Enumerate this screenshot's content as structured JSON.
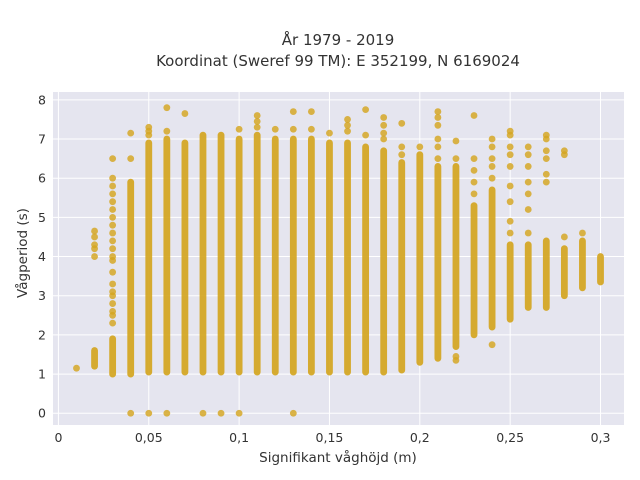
{
  "chart_data": {
    "type": "scatter",
    "title": "År 1979 - 2019",
    "subtitle": "Koordinat (Sweref 99 TM): E 352199, N 6169024",
    "xlabel": "Signifikant våghöjd (m)",
    "ylabel": "Vågperiod (s)",
    "xlim": [
      -0.003,
      0.313
    ],
    "ylim": [
      -0.3,
      8.2
    ],
    "x_ticks": [
      0,
      0.05,
      0.1,
      0.15,
      0.2,
      0.25,
      0.3
    ],
    "x_tick_labels": [
      "0",
      "0,05",
      "0,1",
      "0,15",
      "0,2",
      "0,25",
      "0,3"
    ],
    "y_ticks": [
      0,
      1,
      2,
      3,
      4,
      5,
      6,
      7,
      8
    ],
    "y_tick_labels": [
      "0",
      "1",
      "2",
      "3",
      "4",
      "5",
      "6",
      "7",
      "8"
    ],
    "grid": true,
    "legend": "none",
    "color": "#d4a520",
    "background": "#e5e5ef",
    "columns": [
      {
        "x": 0.01,
        "y_min": 1.15,
        "y_max": 1.15,
        "outliers": []
      },
      {
        "x": 0.02,
        "y_min": 1.2,
        "y_max": 1.6,
        "outliers": [
          4.0,
          4.2,
          4.3,
          4.5,
          4.65
        ]
      },
      {
        "x": 0.03,
        "y_min": 1.0,
        "y_max": 1.9,
        "outliers": [
          2.3,
          2.5,
          2.6,
          2.8,
          3.0,
          3.1,
          3.3,
          3.6,
          3.9,
          4.0,
          4.2,
          4.4,
          4.6,
          4.8,
          5.0,
          5.2,
          5.4,
          5.6,
          5.8,
          6.0,
          6.5
        ]
      },
      {
        "x": 0.04,
        "y_min": 1.0,
        "y_max": 5.9,
        "outliers": [
          0.0,
          6.5,
          7.15
        ]
      },
      {
        "x": 0.05,
        "y_min": 1.05,
        "y_max": 6.9,
        "outliers": [
          0.0,
          7.1,
          7.2,
          7.3
        ]
      },
      {
        "x": 0.06,
        "y_min": 1.05,
        "y_max": 7.0,
        "outliers": [
          0.0,
          7.2,
          7.8
        ]
      },
      {
        "x": 0.07,
        "y_min": 1.05,
        "y_max": 6.9,
        "outliers": [
          7.65
        ]
      },
      {
        "x": 0.08,
        "y_min": 1.05,
        "y_max": 7.1,
        "outliers": [
          0.0
        ]
      },
      {
        "x": 0.09,
        "y_min": 1.05,
        "y_max": 7.1,
        "outliers": [
          0.0
        ]
      },
      {
        "x": 0.1,
        "y_min": 1.05,
        "y_max": 7.0,
        "outliers": [
          0.0,
          7.25
        ]
      },
      {
        "x": 0.11,
        "y_min": 1.05,
        "y_max": 7.1,
        "outliers": [
          7.3,
          7.45,
          7.6
        ]
      },
      {
        "x": 0.12,
        "y_min": 1.05,
        "y_max": 7.0,
        "outliers": [
          7.25
        ]
      },
      {
        "x": 0.13,
        "y_min": 1.05,
        "y_max": 7.0,
        "outliers": [
          0.0,
          7.25,
          7.7
        ]
      },
      {
        "x": 0.14,
        "y_min": 1.05,
        "y_max": 7.0,
        "outliers": [
          7.25,
          7.7
        ]
      },
      {
        "x": 0.15,
        "y_min": 1.05,
        "y_max": 6.9,
        "outliers": [
          7.15
        ]
      },
      {
        "x": 0.16,
        "y_min": 1.05,
        "y_max": 6.9,
        "outliers": [
          7.2,
          7.35,
          7.5
        ]
      },
      {
        "x": 0.17,
        "y_min": 1.05,
        "y_max": 6.8,
        "outliers": [
          7.1,
          7.75
        ]
      },
      {
        "x": 0.18,
        "y_min": 1.05,
        "y_max": 6.7,
        "outliers": [
          7.0,
          7.15,
          7.35,
          7.55
        ]
      },
      {
        "x": 0.19,
        "y_min": 1.1,
        "y_max": 6.4,
        "outliers": [
          6.6,
          6.8,
          7.4
        ]
      },
      {
        "x": 0.2,
        "y_min": 1.3,
        "y_max": 6.6,
        "outliers": [
          6.8
        ]
      },
      {
        "x": 0.21,
        "y_min": 1.4,
        "y_max": 6.3,
        "outliers": [
          6.5,
          6.8,
          7.0,
          7.35,
          7.55,
          7.7
        ]
      },
      {
        "x": 0.22,
        "y_min": 1.7,
        "y_max": 6.3,
        "outliers": [
          1.35,
          1.45,
          6.5,
          6.95
        ]
      },
      {
        "x": 0.23,
        "y_min": 2.0,
        "y_max": 5.3,
        "outliers": [
          5.6,
          5.9,
          6.2,
          6.5,
          7.6
        ]
      },
      {
        "x": 0.24,
        "y_min": 2.2,
        "y_max": 5.7,
        "outliers": [
          1.75,
          6.0,
          6.3,
          6.5,
          6.8,
          7.0
        ]
      },
      {
        "x": 0.25,
        "y_min": 2.4,
        "y_max": 4.3,
        "outliers": [
          4.6,
          4.9,
          5.4,
          5.8,
          6.3,
          6.6,
          6.8,
          7.1,
          7.2
        ]
      },
      {
        "x": 0.26,
        "y_min": 2.7,
        "y_max": 4.3,
        "outliers": [
          4.6,
          5.2,
          5.6,
          5.9,
          6.3,
          6.6,
          6.8
        ]
      },
      {
        "x": 0.27,
        "y_min": 2.7,
        "y_max": 4.4,
        "outliers": [
          5.9,
          6.1,
          6.5,
          6.7,
          7.0,
          7.1
        ]
      },
      {
        "x": 0.28,
        "y_min": 3.0,
        "y_max": 4.2,
        "outliers": [
          4.5,
          6.6,
          6.7
        ]
      },
      {
        "x": 0.29,
        "y_min": 3.2,
        "y_max": 4.4,
        "outliers": [
          4.6
        ]
      },
      {
        "x": 0.3,
        "y_min": 3.35,
        "y_max": 4.0,
        "outliers": []
      }
    ]
  }
}
